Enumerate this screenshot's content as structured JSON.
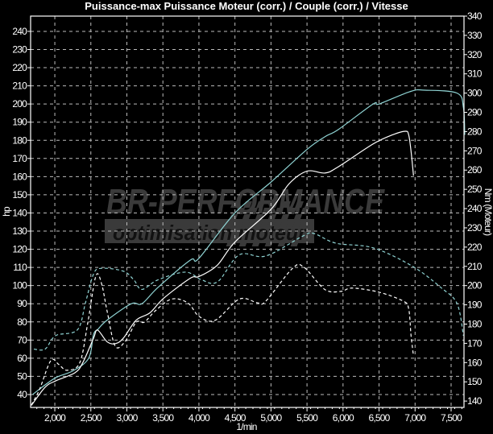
{
  "chart_data": {
    "type": "line",
    "title": "Puissance-max Puissance Moteur (corr.) / Couple (corr.) / Vitesse",
    "xlabel": "1/min",
    "ylabel": "hp",
    "y2label": "Nm (Moteur)",
    "xlim": [
      1664,
      7679
    ],
    "ylim": [
      32.9,
      248.4
    ],
    "y2lim": [
      136.7,
      340
    ],
    "x_ticks": [
      2000,
      2500,
      3000,
      3500,
      4000,
      4500,
      5000,
      5500,
      6000,
      6500,
      7000,
      7500
    ],
    "x_tick_labels": [
      "2,000",
      "2,500",
      "3,000",
      "3,500",
      "4,000",
      "4,500",
      "5,000",
      "5,500",
      "6,000",
      "6,500",
      "7,000",
      "7,500"
    ],
    "y_ticks": [
      40,
      50,
      60,
      70,
      80,
      90,
      100,
      110,
      120,
      130,
      140,
      150,
      160,
      170,
      180,
      190,
      200,
      210,
      220,
      230,
      240
    ],
    "y2_ticks": [
      140,
      150,
      160,
      170,
      180,
      190,
      200,
      210,
      220,
      230,
      240,
      250,
      260,
      270,
      280,
      290,
      300,
      310,
      320,
      330,
      340
    ],
    "grid": true,
    "watermark": {
      "line1": "BR-PERFORMANCE",
      "line2": "optimisation moteur"
    },
    "colors": {
      "cyan": "#8fd3d3",
      "white": "#ffffff",
      "background": "#000000",
      "watermark": "#3a3a3a"
    },
    "series": [
      {
        "axis": "left",
        "style": "solid",
        "color": "cyan",
        "x": [
          1690,
          2000,
          2250,
          2470,
          2537,
          2600,
          2727,
          3063,
          3208,
          3432,
          3879,
          4000,
          4500,
          5000,
          5500,
          5750,
          5937,
          6418,
          6500,
          6944,
          7134,
          7582,
          7671,
          7690
        ],
        "y": [
          40,
          49,
          53,
          60,
          73,
          76,
          81,
          90,
          90,
          99,
          114,
          115,
          140,
          157,
          175,
          182,
          186,
          200,
          200,
          207,
          207.6,
          206,
          198,
          183
        ]
      },
      {
        "axis": "left",
        "style": "solid",
        "color": "white",
        "x": [
          1675,
          1865,
          2011,
          2280,
          2390,
          2537,
          2593,
          2727,
          2839,
          2950,
          3130,
          3320,
          3510,
          3879,
          4000,
          4250,
          4500,
          5000,
          5250,
          5500,
          5750,
          5937,
          6418,
          6687,
          6866,
          6911,
          6944,
          6978
        ],
        "y": [
          34,
          44,
          47.5,
          52,
          57.7,
          71,
          75.5,
          69,
          68,
          71,
          81,
          85,
          93,
          104,
          105,
          111,
          124,
          142,
          156,
          163,
          162,
          165.5,
          178,
          183,
          185,
          183,
          174,
          160.6
        ]
      },
      {
        "axis": "right",
        "style": "dashed",
        "color": "cyan",
        "x": [
          1709,
          1865,
          2011,
          2313,
          2425,
          2537,
          2649,
          2950,
          3096,
          3208,
          3432,
          3812,
          4036,
          4260,
          4561,
          4930,
          5456,
          5601,
          5904,
          6418,
          6966,
          7358,
          7582,
          7671
        ],
        "y": [
          167,
          167,
          174,
          177,
          191,
          206,
          209,
          207.5,
          203,
          198,
          203,
          207,
          203,
          202,
          216,
          215.4,
          226,
          227,
          222,
          219.6,
          210,
          199,
          190.7,
          174
        ]
      },
      {
        "axis": "right",
        "style": "dashed",
        "color": "white",
        "x": [
          1675,
          1787,
          1944,
          2056,
          2168,
          2347,
          2459,
          2570,
          2649,
          2727,
          2839,
          2984,
          3130,
          3242,
          3398,
          3622,
          3846,
          4002,
          4226,
          4561,
          4818,
          4930,
          5300,
          5456,
          5747,
          5971,
          6127,
          6497,
          6832,
          6911,
          6944,
          6978
        ],
        "y": [
          138,
          146,
          161,
          159,
          156,
          160,
          181,
          205,
          201,
          186.5,
          168.5,
          171.4,
          181,
          181,
          187,
          193,
          191,
          184,
          182,
          193,
          191,
          192,
          209,
          209.6,
          198,
          197,
          198.7,
          196.6,
          192,
          188,
          174,
          163.5
        ]
      }
    ]
  }
}
